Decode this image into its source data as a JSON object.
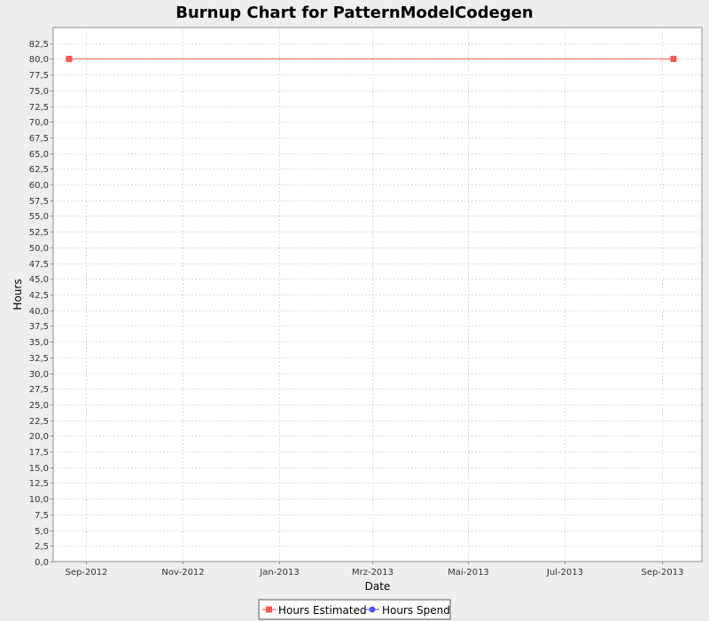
{
  "chart_data": {
    "type": "line",
    "title": "Burnup Chart for PatternModelCodegen",
    "xlabel": "Date",
    "ylabel": "Hours",
    "x_ticks": [
      {
        "date": "2012-09-01",
        "label": "Sep-2012"
      },
      {
        "date": "2012-11-01",
        "label": "Nov-2012"
      },
      {
        "date": "2013-01-01",
        "label": "Jan-2013"
      },
      {
        "date": "2013-03-01",
        "label": "Mrz-2013"
      },
      {
        "date": "2013-05-01",
        "label": "Mai-2013"
      },
      {
        "date": "2013-07-01",
        "label": "Jul-2013"
      },
      {
        "date": "2013-09-01",
        "label": "Sep-2013"
      }
    ],
    "xlim": [
      "2012-08-11",
      "2013-09-26"
    ],
    "ylim": [
      0,
      85
    ],
    "y_tick_step": 2.5,
    "decimal_separator": ",",
    "grid": true,
    "legend_position": "bottom",
    "series": [
      {
        "name": "Hours Estimated",
        "color": "#ff5555",
        "marker": "square",
        "points": [
          {
            "x": "2012-08-21",
            "y": 80.0
          },
          {
            "x": "2013-09-08",
            "y": 80.0
          }
        ]
      },
      {
        "name": "Hours Spend",
        "color": "#5555ff",
        "marker": "circle",
        "points": []
      }
    ]
  }
}
